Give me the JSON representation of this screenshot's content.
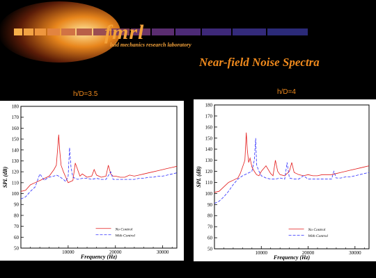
{
  "header": {
    "logo_text": "fmrl",
    "lab_name": "luid mechanics research laboratory",
    "slide_title": "Near-field Noise Spectra"
  },
  "colors": {
    "accent": "#f08a1d",
    "no_control": "#e31818",
    "with_control": "#2a2aff"
  },
  "panels": [
    {
      "label": "h/D=3.5"
    },
    {
      "label": "h/D=4"
    }
  ],
  "chart_data": [
    {
      "type": "line",
      "title": "",
      "xlabel": "Frequency (Hz)",
      "ylabel": "SPL (dB)",
      "xlim": [
        0,
        33000
      ],
      "ylim": [
        50,
        180
      ],
      "x_ticks": [
        10000,
        20000,
        30000
      ],
      "y_ticks": [
        50,
        60,
        70,
        80,
        90,
        100,
        110,
        120,
        130,
        140,
        150,
        160,
        170,
        180
      ],
      "series": [
        {
          "name": "No Control",
          "x": [
            0,
            1000,
            2000,
            3000,
            4000,
            5000,
            6000,
            7000,
            7500,
            7800,
            8000,
            8200,
            8500,
            9000,
            9500,
            10000,
            11000,
            11500,
            12000,
            12500,
            13000,
            14000,
            15000,
            15500,
            16000,
            17000,
            18000,
            18500,
            19000,
            19500,
            20000,
            21000,
            22000,
            23000,
            24000,
            25000,
            26000,
            27000,
            28000,
            29000,
            30000,
            31000,
            32000,
            33000
          ],
          "y": [
            102,
            103,
            108,
            110,
            112,
            114,
            116,
            122,
            126,
            142,
            154,
            140,
            126,
            120,
            115,
            110,
            112,
            128,
            122,
            116,
            118,
            115,
            116,
            122,
            117,
            115,
            116,
            126,
            118,
            116,
            116,
            115,
            115,
            117,
            116,
            117,
            118,
            119,
            120,
            121,
            122,
            123,
            124,
            125
          ]
        },
        {
          "name": "With Control",
          "x": [
            0,
            1000,
            2000,
            3000,
            3500,
            4000,
            5000,
            5500,
            6000,
            7000,
            7500,
            8000,
            9000,
            9500,
            10000,
            10300,
            10600,
            11000,
            12000,
            13000,
            14000,
            15000,
            16000,
            17000,
            18000,
            19000,
            19500,
            20000,
            21000,
            22000,
            23000,
            24000,
            25000,
            26000,
            27000,
            28000,
            29000,
            30000,
            31000,
            32000,
            33000
          ],
          "y": [
            95,
            97,
            102,
            106,
            112,
            118,
            112,
            114,
            115,
            116,
            117,
            116,
            113,
            111,
            116,
            142,
            124,
            115,
            113,
            114,
            114,
            113,
            114,
            113,
            113,
            120,
            113,
            113,
            113,
            113,
            113,
            113,
            114,
            114,
            115,
            115,
            116,
            116,
            117,
            118,
            119
          ]
        }
      ]
    },
    {
      "type": "line",
      "title": "",
      "xlabel": "Frequency (Hz)",
      "ylabel": "SPL (dB)",
      "xlim": [
        0,
        33000
      ],
      "ylim": [
        50,
        180
      ],
      "x_ticks": [
        10000,
        20000,
        30000
      ],
      "y_ticks": [
        50,
        60,
        70,
        80,
        90,
        100,
        110,
        120,
        130,
        140,
        150,
        160,
        170,
        180
      ],
      "series": [
        {
          "name": "No Control",
          "x": [
            0,
            1000,
            2000,
            3000,
            4000,
            5000,
            5500,
            6000,
            6500,
            6800,
            7000,
            7300,
            7600,
            8000,
            8500,
            9000,
            9500,
            10000,
            11000,
            12000,
            12500,
            13000,
            13500,
            14000,
            15000,
            16000,
            16500,
            17000,
            18000,
            19000,
            20000,
            21000,
            22000,
            23000,
            24000,
            25000,
            26000,
            27000,
            28000,
            29000,
            30000,
            31000,
            32000,
            33000
          ],
          "y": [
            101,
            102,
            106,
            110,
            112,
            114,
            118,
            124,
            130,
            155,
            140,
            128,
            132,
            124,
            120,
            117,
            116,
            120,
            125,
            118,
            116,
            130,
            120,
            117,
            116,
            120,
            128,
            119,
            117,
            116,
            117,
            116,
            116,
            117,
            117,
            117,
            118,
            119,
            120,
            121,
            122,
            123,
            124,
            125
          ]
        },
        {
          "name": "With Control",
          "x": [
            0,
            1000,
            2000,
            3000,
            4000,
            5000,
            6000,
            7000,
            8000,
            8500,
            8800,
            9000,
            9500,
            10000,
            11000,
            12000,
            13000,
            14000,
            15000,
            15500,
            16000,
            17000,
            18000,
            19000,
            20000,
            21000,
            22000,
            23000,
            24000,
            25000,
            25500,
            26000,
            27000,
            28000,
            29000,
            30000,
            31000,
            32000,
            33000
          ],
          "y": [
            91,
            93,
            97,
            102,
            108,
            113,
            116,
            118,
            120,
            130,
            150,
            126,
            120,
            116,
            114,
            113,
            113,
            114,
            113,
            128,
            114,
            113,
            113,
            116,
            113,
            113,
            113,
            113,
            113,
            113,
            120,
            114,
            114,
            115,
            115,
            116,
            117,
            118,
            119
          ]
        }
      ]
    }
  ]
}
